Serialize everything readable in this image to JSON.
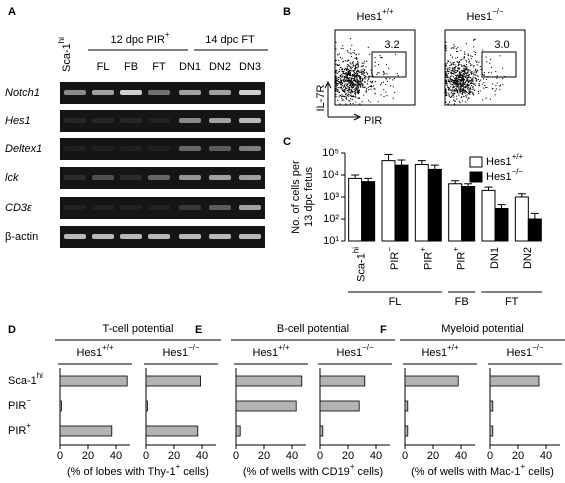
{
  "panel_labels": [
    "A",
    "B",
    "C",
    "D",
    "E",
    "F"
  ],
  "gel": {
    "group_labels": [
      {
        "text": "12 dpc PIR",
        "sup": "+"
      },
      "14 dpc FT"
    ],
    "lanes": [
      {
        "text": "Sca-1",
        "sup": "hi"
      },
      "FL",
      "FB",
      "FT",
      "DN1",
      "DN2",
      "DN3"
    ],
    "genes": [
      "Notch1",
      "Hes1",
      "Deltex1",
      "lck",
      "CD3ε",
      "β-actin"
    ]
  },
  "flow": {
    "y_label": "IL-7R",
    "x_label": "PIR",
    "plots": [
      {
        "genotype": {
          "text": "Hes1",
          "sup": "+/+"
        },
        "gate_value": "3.2"
      },
      {
        "genotype": {
          "text": "Hes1",
          "sup": "−/−"
        },
        "gate_value": "3.0"
      }
    ]
  },
  "chart_data": [
    {
      "type": "bar",
      "log_y": true,
      "y_label": [
        "No. of cells per",
        "13 dpc fetus"
      ],
      "categories": [
        {
          "text": "Sca-1",
          "sup": "hi"
        },
        {
          "text": "PIR",
          "sup": "−"
        },
        {
          "text": "PIR",
          "sup": "+"
        },
        {
          "text": "PIR",
          "sup": "+"
        },
        "DN1",
        "DN2"
      ],
      "category_groups": [
        "FL",
        "FL",
        "FL",
        "FB",
        "FT",
        "FT"
      ],
      "ylim": [
        10,
        100000
      ],
      "yticks": [
        {
          "value": 10,
          "label": "10¹"
        },
        {
          "value": 100,
          "label": "10²"
        },
        {
          "value": 1000,
          "label": "10³"
        },
        {
          "value": 10000,
          "label": "10⁴"
        },
        {
          "value": 100000,
          "label": "10⁵"
        }
      ],
      "legend": "top-right",
      "series": [
        {
          "name": {
            "text": "Hes1",
            "sup": "+/+"
          },
          "color": "#ffffff",
          "values": [
            7000,
            45000,
            30000,
            4000,
            2000,
            1000
          ],
          "errors": [
            3000,
            40000,
            15000,
            1500,
            800,
            400
          ]
        },
        {
          "name": {
            "text": "Hes1",
            "sup": "−/−"
          },
          "color": "#000000",
          "values": [
            5000,
            28000,
            18000,
            3000,
            300,
            100
          ],
          "errors": [
            2000,
            20000,
            10000,
            1000,
            150,
            80
          ]
        }
      ]
    },
    {
      "type": "hbar",
      "title": "T-cell potential",
      "categories": [
        {
          "text": "Sca-1",
          "sup": "hi"
        },
        {
          "text": "PIR",
          "sup": "−"
        },
        {
          "text": "PIR",
          "sup": "+"
        }
      ],
      "xlim": [
        0,
        50
      ],
      "xticks": [
        0,
        20,
        40
      ],
      "x_label": {
        "text": "(% of lobes with Thy-1",
        "sup": "+",
        "after": " cells)"
      },
      "series": [
        {
          "name": {
            "text": "Hes1",
            "sup": "+/+"
          },
          "color": "#b3b3b3",
          "values": [
            48,
            1,
            37
          ]
        },
        {
          "name": {
            "text": "Hes1",
            "sup": "−/−"
          },
          "color": "#b3b3b3",
          "values": [
            39,
            1,
            37
          ]
        }
      ]
    },
    {
      "type": "hbar",
      "title": "B-cell potential",
      "xlim": [
        0,
        50
      ],
      "xticks": [
        0,
        20,
        40
      ],
      "x_label": {
        "text": "(% of wells with CD19",
        "sup": "+",
        "after": " cells)"
      },
      "series": [
        {
          "name": {
            "text": "Hes1",
            "sup": "+/+"
          },
          "color": "#b3b3b3",
          "values": [
            47,
            43,
            3
          ]
        },
        {
          "name": {
            "text": "Hes1",
            "sup": "−/−"
          },
          "color": "#b3b3b3",
          "values": [
            32,
            28,
            2
          ]
        }
      ]
    },
    {
      "type": "hbar",
      "title": "Myeloid potential",
      "xlim": [
        0,
        50
      ],
      "xticks": [
        0,
        20,
        40
      ],
      "x_label": {
        "text": "(% of wells with Mac-1",
        "sup": "+",
        "after": " cells)"
      },
      "series": [
        {
          "name": {
            "text": "Hes1",
            "sup": "+/+"
          },
          "color": "#b3b3b3",
          "values": [
            38,
            2,
            2
          ]
        },
        {
          "name": {
            "text": "Hes1",
            "sup": "−/−"
          },
          "color": "#b3b3b3",
          "values": [
            35,
            2,
            2
          ]
        }
      ]
    }
  ]
}
